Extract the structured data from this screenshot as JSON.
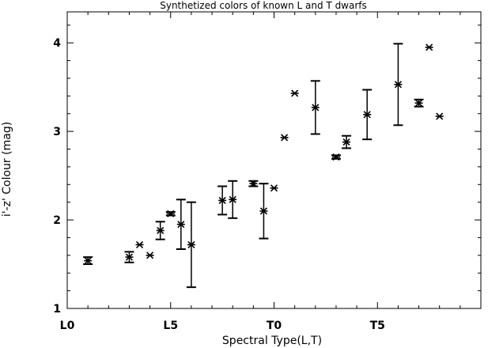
{
  "chart_data": {
    "type": "scatter",
    "title": "Synthetized colors of known L and T dwarfs",
    "xlabel": "Spectral Type(L,T)",
    "ylabel": "i'-z' Colour (mag)",
    "xlim": [
      0,
      20
    ],
    "ylim": [
      1,
      4.35
    ],
    "xticks": [
      {
        "value": 0,
        "label": "L0"
      },
      {
        "value": 5,
        "label": "L5"
      },
      {
        "value": 10,
        "label": "T0"
      },
      {
        "value": 15,
        "label": "T5"
      }
    ],
    "yticks": [
      {
        "value": 1,
        "label": "1"
      },
      {
        "value": 2,
        "label": "2"
      },
      {
        "value": 3,
        "label": "3"
      },
      {
        "value": 4,
        "label": "4"
      }
    ],
    "grid": false,
    "points": [
      {
        "x": 1.0,
        "y": 1.54,
        "err": 0.04
      },
      {
        "x": 3.0,
        "y": 1.58,
        "err": 0.06
      },
      {
        "x": 3.5,
        "y": 1.72,
        "err": 0.0
      },
      {
        "x": 4.0,
        "y": 1.6,
        "err": 0.0
      },
      {
        "x": 4.5,
        "y": 1.88,
        "err": 0.1
      },
      {
        "x": 5.0,
        "y": 2.07,
        "err": 0.02
      },
      {
        "x": 5.5,
        "y": 1.95,
        "err": 0.28
      },
      {
        "x": 6.0,
        "y": 1.72,
        "err": 0.48
      },
      {
        "x": 7.5,
        "y": 2.22,
        "err": 0.16
      },
      {
        "x": 8.0,
        "y": 2.23,
        "err": 0.21
      },
      {
        "x": 9.0,
        "y": 2.41,
        "err": 0.03
      },
      {
        "x": 9.5,
        "y": 2.1,
        "err": 0.31
      },
      {
        "x": 10.0,
        "y": 2.36,
        "err": 0.0
      },
      {
        "x": 10.5,
        "y": 2.93,
        "err": 0.0
      },
      {
        "x": 11.0,
        "y": 3.43,
        "err": 0.0
      },
      {
        "x": 12.0,
        "y": 3.27,
        "err": 0.3
      },
      {
        "x": 13.0,
        "y": 2.71,
        "err": 0.02
      },
      {
        "x": 13.5,
        "y": 2.88,
        "err": 0.07
      },
      {
        "x": 14.5,
        "y": 3.19,
        "err": 0.28
      },
      {
        "x": 16.0,
        "y": 3.53,
        "err": 0.46
      },
      {
        "x": 17.0,
        "y": 3.32,
        "err": 0.04
      },
      {
        "x": 17.5,
        "y": 3.95,
        "err": 0.0
      },
      {
        "x": 18.0,
        "y": 3.17,
        "err": 0.0
      }
    ]
  }
}
